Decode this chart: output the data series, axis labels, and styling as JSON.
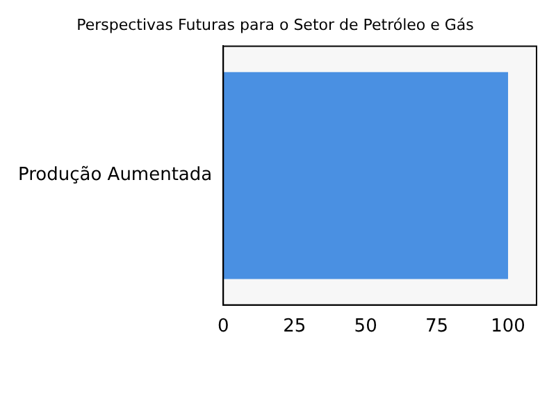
{
  "chart_data": {
    "type": "bar",
    "orientation": "horizontal",
    "title": "Perspectivas Futuras para o Setor de Petróleo e Gás",
    "categories": [
      "Produção Aumentada"
    ],
    "values": [
      100
    ],
    "color": "#4a90e2",
    "xlim": [
      0,
      110
    ],
    "xticks": [
      0,
      25,
      50,
      75,
      100
    ],
    "grid": false,
    "legend": false
  }
}
